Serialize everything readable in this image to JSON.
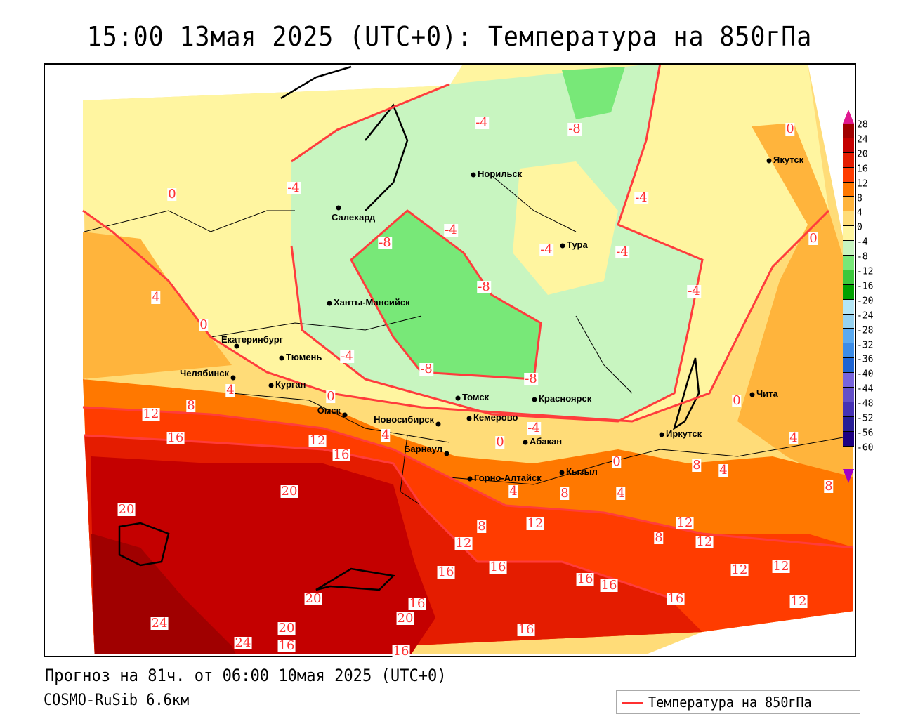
{
  "title": "15:00 13мая 2025 (UTC+0): Температура на 850гПа",
  "footer": {
    "forecast": "Прогноз на 81ч. от 06:00 10мая 2025 (UTC+0)",
    "model": "COSMO-RuSib 6.6км"
  },
  "legend": {
    "label": "Температура на 850гПа",
    "line_color": "#ff3030"
  },
  "colorbar": {
    "ticks": [
      "28",
      "24",
      "20",
      "16",
      "12",
      "8",
      "4",
      "0",
      "-4",
      "-8",
      "-12",
      "-16",
      "-20",
      "-24",
      "-28",
      "-32",
      "-36",
      "-40",
      "-44",
      "-48",
      "-52",
      "-56",
      "-60"
    ],
    "colors": [
      "#a00000",
      "#c40000",
      "#e41c00",
      "#ff3c00",
      "#ff7800",
      "#ffb43c",
      "#ffdc78",
      "#fff5a0",
      "#c8f5c0",
      "#78e878",
      "#3cc83c",
      "#00a000",
      "#b4e6f5",
      "#96d2f0",
      "#5aaaf0",
      "#3c8ce6",
      "#1e64d2",
      "#7864dc",
      "#6450c8",
      "#4632b4",
      "#281e96",
      "#1e0082"
    ],
    "top_arrow_color": "#e01890",
    "bottom_arrow_color": "#a000c8"
  },
  "cities": [
    {
      "name": "Норильск"
    },
    {
      "name": "Якутск"
    },
    {
      "name": "Салехард"
    },
    {
      "name": "Тура"
    },
    {
      "name": "Ханты-Мансийск"
    },
    {
      "name": "Екатеринбург"
    },
    {
      "name": "Тюмень"
    },
    {
      "name": "Челябинск"
    },
    {
      "name": "Курган"
    },
    {
      "name": "Томск"
    },
    {
      "name": "Красноярск"
    },
    {
      "name": "Омск"
    },
    {
      "name": "Новосибирск"
    },
    {
      "name": "Кемерово"
    },
    {
      "name": "Абакан"
    },
    {
      "name": "Барнаул"
    },
    {
      "name": "Иркутск"
    },
    {
      "name": "Чита"
    },
    {
      "name": "Кызыл"
    },
    {
      "name": "Горно-Алтайск"
    }
  ],
  "contour_labels": [
    "-4",
    "-8",
    "0",
    "-4",
    "0",
    "-4",
    "-8",
    "-4",
    "-4",
    "-4",
    "0",
    "4",
    "-8",
    "-4",
    "0",
    "-4",
    "-8",
    "-8",
    "4",
    "0",
    "0",
    "12",
    "8",
    "16",
    "12",
    "4",
    "16",
    "-4",
    "0",
    "4",
    "0",
    "8",
    "4",
    "4",
    "8",
    "4",
    "8",
    "20",
    "20",
    "8",
    "12",
    "12",
    "12",
    "12",
    "8",
    "16",
    "16",
    "16",
    "16",
    "12",
    "12",
    "16",
    "12",
    "20",
    "16",
    "20",
    "24",
    "20",
    "24",
    "16",
    "16",
    "16"
  ]
}
